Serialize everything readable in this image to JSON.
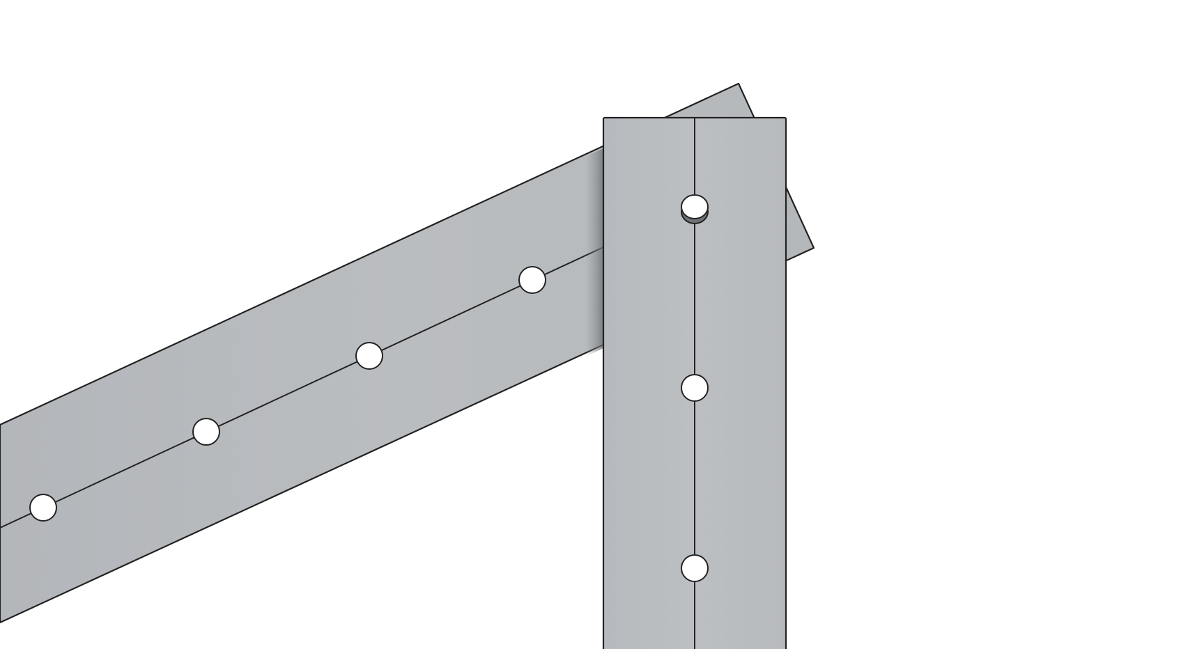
{
  "viewport": {
    "background": "#ffffff",
    "parts": [
      {
        "name": "diagonal-beam",
        "fill": "#b6b9bc",
        "edge": "#222222",
        "visible_holes": 5
      },
      {
        "name": "vertical-post",
        "fill": "#b9bcbf",
        "edge": "#222222",
        "visible_holes": 3
      }
    ],
    "hole_fill": "#ffffff"
  }
}
